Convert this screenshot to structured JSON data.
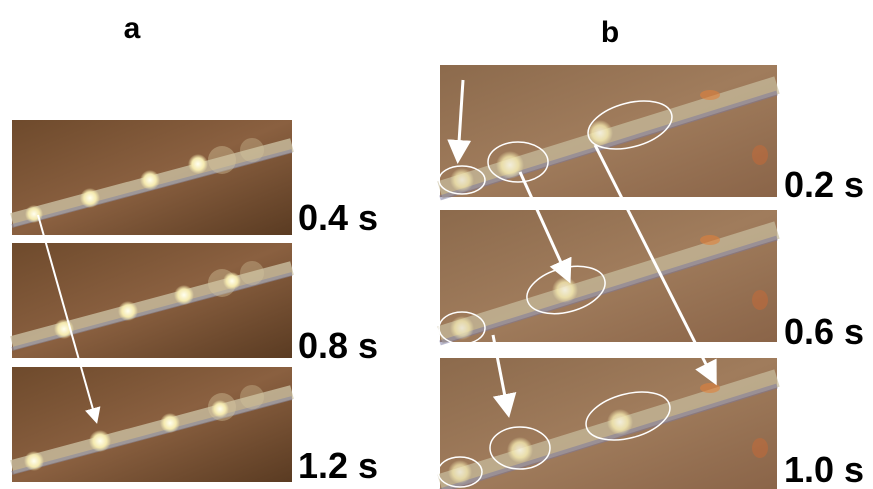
{
  "panels": [
    {
      "label": "a",
      "frames": [
        {
          "time": "0.4 s"
        },
        {
          "time": "0.8 s"
        },
        {
          "time": "1.2 s"
        }
      ]
    },
    {
      "label": "b",
      "frames": [
        {
          "time": "0.2 s"
        },
        {
          "time": "0.6 s"
        },
        {
          "time": "1.0 s"
        }
      ]
    }
  ]
}
